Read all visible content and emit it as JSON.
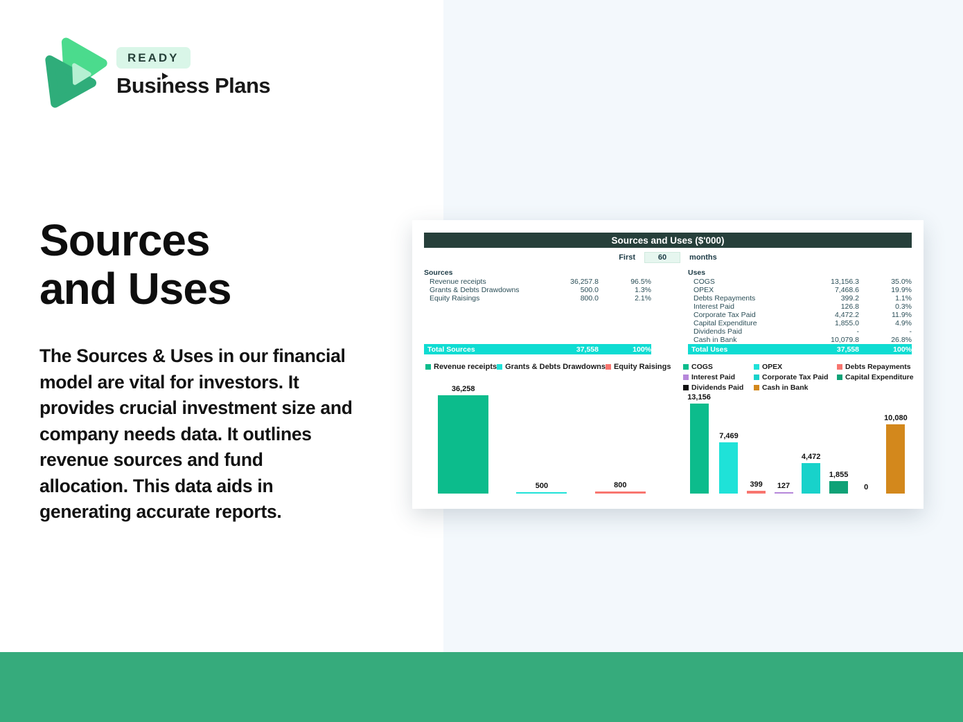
{
  "brand": {
    "badge": "READY",
    "name": "Business Plans"
  },
  "hero": {
    "title_line1": "Sources",
    "title_line2": "and Uses",
    "description": "The Sources & Uses in our financial model are vital for investors. It provides crucial investment size and company needs data. It outlines revenue sources and fund allocation. This data aids in generating accurate reports."
  },
  "spreadsheet": {
    "title": "Sources and Uses ($'000)",
    "period": {
      "label_first": "First",
      "value": "60",
      "label_months": "months"
    },
    "sources": {
      "header": "Sources",
      "rows": [
        {
          "label": "Revenue receipts",
          "value": "36,257.8",
          "pct": "96.5%"
        },
        {
          "label": "Grants & Debts Drawdowns",
          "value": "500.0",
          "pct": "1.3%"
        },
        {
          "label": "Equity Raisings",
          "value": "800.0",
          "pct": "2.1%"
        }
      ],
      "total": {
        "label": "Total Sources",
        "value": "37,558",
        "pct": "100%"
      }
    },
    "uses": {
      "header": "Uses",
      "rows": [
        {
          "label": "COGS",
          "value": "13,156.3",
          "pct": "35.0%"
        },
        {
          "label": "OPEX",
          "value": "7,468.6",
          "pct": "19.9%"
        },
        {
          "label": "Debts Repayments",
          "value": "399.2",
          "pct": "1.1%"
        },
        {
          "label": "Interest Paid",
          "value": "126.8",
          "pct": "0.3%"
        },
        {
          "label": "Corporate Tax Paid",
          "value": "4,472.2",
          "pct": "11.9%"
        },
        {
          "label": "Capital Expenditure",
          "value": "1,855.0",
          "pct": "4.9%"
        },
        {
          "label": "Dividends Paid",
          "value": "-",
          "pct": "-"
        },
        {
          "label": "Cash in Bank",
          "value": "10,079.8",
          "pct": "26.8%"
        }
      ],
      "total": {
        "label": "Total Uses",
        "value": "37,558",
        "pct": "100%"
      }
    }
  },
  "chart_data": [
    {
      "type": "bar",
      "title": "Sources",
      "categories": [
        "Revenue receipts",
        "Grants & Debts Drawdowns",
        "Equity Raisings"
      ],
      "values": [
        36258,
        500,
        800
      ],
      "labels": [
        "36,258",
        "500",
        "800"
      ],
      "colors": [
        "#0cbc8c",
        "#1fe2d8",
        "#f8756f"
      ],
      "legend_position": "top",
      "ylim": [
        0,
        36258
      ],
      "grid": false,
      "axes_visible": false
    },
    {
      "type": "bar",
      "title": "Uses",
      "categories": [
        "COGS",
        "OPEX",
        "Debts Repayments",
        "Interest Paid",
        "Corporate Tax Paid",
        "Capital Expenditure",
        "Dividends Paid",
        "Cash in Bank"
      ],
      "values": [
        13156,
        7469,
        399,
        127,
        4472,
        1855,
        0,
        10080
      ],
      "labels": [
        "13,156",
        "7,469",
        "399",
        "127",
        "4,472",
        "1,855",
        "0",
        "10,080"
      ],
      "colors": [
        "#0cbc8c",
        "#1fe2d8",
        "#f8756f",
        "#b687da",
        "#18d2ca",
        "#0fa277",
        "#111111",
        "#d3881c"
      ],
      "legend_position": "top",
      "ylim": [
        0,
        13156
      ],
      "grid": false,
      "axes_visible": false
    }
  ],
  "colors": {
    "accent_green": "#36ab7c",
    "panel_blue": "#f3f8fc",
    "sheet_header": "#263f3a",
    "total_row": "#0fdcd2"
  }
}
